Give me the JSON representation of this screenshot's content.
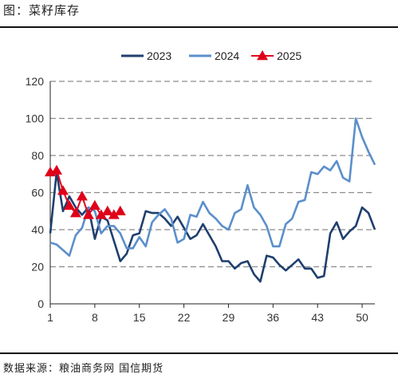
{
  "header": {
    "title": "图：菜籽库存"
  },
  "footer": {
    "source": "数据来源：粮油商务网  国信期货"
  },
  "chart_data": {
    "type": "line",
    "xlim": [
      1,
      52
    ],
    "ylim": [
      0,
      120
    ],
    "x_ticks": [
      1,
      8,
      15,
      22,
      29,
      36,
      43,
      50
    ],
    "y_ticks": [
      0,
      20,
      40,
      60,
      80,
      100,
      120
    ],
    "grid": "horizontal dashed",
    "legend_position": "top",
    "series": [
      {
        "name": "2023",
        "color": "#1f3f6e",
        "marker": "none",
        "x": [
          1,
          2,
          3,
          4,
          5,
          6,
          7,
          8,
          9,
          10,
          11,
          12,
          13,
          14,
          15,
          16,
          17,
          18,
          19,
          20,
          21,
          22,
          23,
          24,
          25,
          26,
          27,
          28,
          29,
          30,
          31,
          32,
          33,
          34,
          35,
          36,
          37,
          38,
          39,
          40,
          41,
          42,
          43,
          44,
          45,
          46,
          47,
          48,
          49,
          50,
          51,
          52
        ],
        "values": [
          38,
          71,
          50,
          58,
          52,
          48,
          52,
          35,
          47,
          45,
          34,
          23,
          27,
          37,
          38,
          50,
          49,
          49,
          46,
          42,
          47,
          41,
          35,
          37,
          43,
          37,
          31,
          23,
          23,
          19,
          22,
          23,
          16,
          12,
          26,
          25,
          21,
          18,
          21,
          24,
          19,
          19,
          14,
          15,
          38,
          44,
          35,
          39,
          42,
          52,
          49,
          40
        ]
      },
      {
        "name": "2024",
        "color": "#5b8fcb",
        "marker": "none",
        "x": [
          1,
          2,
          3,
          4,
          5,
          6,
          7,
          8,
          9,
          10,
          11,
          12,
          13,
          14,
          15,
          16,
          17,
          18,
          19,
          20,
          21,
          22,
          23,
          24,
          25,
          26,
          27,
          28,
          29,
          30,
          31,
          32,
          33,
          34,
          35,
          36,
          37,
          38,
          39,
          40,
          41,
          42,
          43,
          44,
          45,
          46,
          47,
          48,
          49,
          50,
          51,
          52
        ],
        "values": [
          33,
          32,
          29,
          26,
          37,
          41,
          52,
          50,
          38,
          42,
          42,
          38,
          30,
          30,
          36,
          31,
          44,
          48,
          51,
          46,
          33,
          35,
          48,
          47,
          55,
          49,
          46,
          42,
          40,
          49,
          51,
          64,
          52,
          48,
          42,
          31,
          31,
          43,
          46,
          55,
          56,
          71,
          70,
          74,
          72,
          77,
          68,
          66,
          100,
          90,
          82,
          75
        ]
      },
      {
        "name": "2025",
        "color": "#e0001a",
        "marker": "triangle",
        "x": [
          1,
          2,
          3,
          4,
          5,
          6,
          7,
          8,
          9,
          10,
          11,
          12
        ],
        "values": [
          71,
          72,
          61,
          53,
          49,
          58,
          48,
          53,
          48,
          50,
          48,
          50
        ]
      }
    ]
  }
}
